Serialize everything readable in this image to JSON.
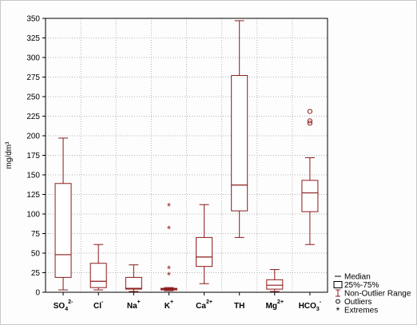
{
  "chart_data": {
    "type": "box",
    "ylabel": "mg/dm³",
    "ylim": [
      0,
      350
    ],
    "ytick_step": 25,
    "grid": "horizontal dotted",
    "legend_position": "bottom-right",
    "colors": {
      "box": "#8b1a1a",
      "median": "#8b1a1a",
      "grid": "#b5b5b5"
    },
    "categories": [
      {
        "base": "SO",
        "sub": "4",
        "sup": "2-"
      },
      {
        "base": "Cl",
        "sub": "",
        "sup": "-"
      },
      {
        "base": "Na",
        "sub": "",
        "sup": "+"
      },
      {
        "base": "K",
        "sub": "",
        "sup": "+"
      },
      {
        "base": "Ca",
        "sub": "",
        "sup": "2+"
      },
      {
        "base": "TH",
        "sub": "",
        "sup": ""
      },
      {
        "base": "Mg",
        "sub": "",
        "sup": "2+"
      },
      {
        "base": "HCO",
        "sub": "3",
        "sup": "-"
      }
    ],
    "boxes": [
      {
        "min": 3,
        "q1": 19,
        "median": 48,
        "q3": 139,
        "max": 197,
        "outliers": [],
        "extremes": []
      },
      {
        "min": 3,
        "q1": 6,
        "median": 14,
        "q3": 37,
        "max": 61,
        "outliers": [],
        "extremes": []
      },
      {
        "min": 1,
        "q1": 4,
        "median": 5,
        "q3": 19,
        "max": 35,
        "outliers": [],
        "extremes": []
      },
      {
        "min": 2,
        "q1": 3,
        "median": 4,
        "q3": 5,
        "max": 6,
        "outliers": [],
        "extremes": [
          110,
          81,
          30,
          22
        ]
      },
      {
        "min": 11,
        "q1": 33,
        "median": 45,
        "q3": 70,
        "max": 112,
        "outliers": [],
        "extremes": []
      },
      {
        "min": 70,
        "q1": 104,
        "median": 137,
        "q3": 277,
        "max": 347,
        "outliers": [],
        "extremes": []
      },
      {
        "min": 1,
        "q1": 4,
        "median": 9,
        "q3": 16,
        "max": 29,
        "outliers": [],
        "extremes": []
      },
      {
        "min": 61,
        "q1": 103,
        "median": 127,
        "q3": 143,
        "max": 172,
        "outliers": [
          231,
          219,
          216
        ],
        "extremes": []
      }
    ],
    "legend": [
      {
        "symbol": "median",
        "label": "Median"
      },
      {
        "symbol": "box",
        "label": "25%-75%"
      },
      {
        "symbol": "whisker",
        "label": "Non-Outlier Range"
      },
      {
        "symbol": "outlier",
        "label": "Outliers"
      },
      {
        "symbol": "extreme",
        "label": "Extremes"
      }
    ]
  }
}
